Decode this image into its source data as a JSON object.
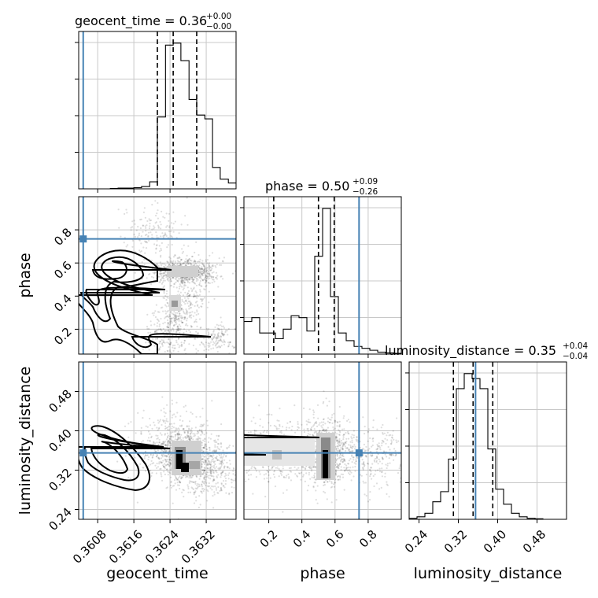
{
  "chart_data": {
    "type": "corner",
    "parameters": [
      "geocent_time",
      "phase",
      "luminosity_distance"
    ],
    "truths": {
      "geocent_time": 0.36048,
      "phase": 0.745,
      "luminosity_distance": 0.355
    },
    "axes": {
      "geocent_time": {
        "range": [
          0.36038,
          0.36386
        ],
        "ticks": [
          0.3608,
          0.3616,
          0.3624,
          0.3632
        ],
        "tick_labels": [
          "0.3608",
          "0.3616",
          "0.3624",
          "0.3632"
        ]
      },
      "phase": {
        "range": [
          0.05,
          1.0
        ],
        "ticks": [
          0.2,
          0.4,
          0.6,
          0.8
        ],
        "tick_labels": [
          "0.2",
          "0.4",
          "0.6",
          "0.8"
        ]
      },
      "luminosity_distance": {
        "range": [
          0.22,
          0.54
        ],
        "ticks": [
          0.24,
          0.32,
          0.4,
          0.48
        ],
        "tick_labels": [
          "0.24",
          "0.32",
          "0.40",
          "0.48"
        ]
      }
    },
    "titles": {
      "geocent_time": {
        "text": "geocent_time = 0.36",
        "plus": "+0.00",
        "minus": "−0.00"
      },
      "phase": {
        "text": "phase = 0.50",
        "plus": "+0.09",
        "minus": "−0.26"
      },
      "luminosity_distance": {
        "text": "luminosity_distance = 0.35",
        "plus": "+0.04",
        "minus": "−0.04"
      }
    },
    "histograms": {
      "geocent_time": {
        "edges": [
          0.36038,
          0.36055,
          0.36073,
          0.3609,
          0.36108,
          0.36125,
          0.36142,
          0.3616,
          0.36177,
          0.36195,
          0.36212,
          0.3623,
          0.36247,
          0.36264,
          0.36282,
          0.36299,
          0.36317,
          0.36334,
          0.36351,
          0.36369,
          0.36386
        ],
        "counts": [
          0,
          0,
          0,
          0,
          1,
          2,
          2,
          3,
          6,
          18,
          185,
          370,
          375,
          330,
          230,
          190,
          180,
          55,
          25,
          15
        ],
        "quantiles": [
          0.36212,
          0.36247,
          0.36299
        ]
      },
      "phase": {
        "edges": [
          0.05,
          0.0975,
          0.145,
          0.1925,
          0.24,
          0.2875,
          0.335,
          0.3825,
          0.43,
          0.4775,
          0.525,
          0.5725,
          0.62,
          0.6675,
          0.715,
          0.7625,
          0.81,
          0.8575,
          0.905,
          0.9525,
          1.0
        ],
        "counts": [
          85,
          95,
          55,
          55,
          40,
          65,
          100,
          95,
          60,
          255,
          380,
          150,
          55,
          35,
          20,
          15,
          10,
          5,
          3,
          2
        ],
        "quantiles": [
          0.23,
          0.5,
          0.595
        ]
      },
      "luminosity_distance": {
        "edges": [
          0.22,
          0.236,
          0.252,
          0.268,
          0.284,
          0.3,
          0.316,
          0.332,
          0.348,
          0.364,
          0.38,
          0.396,
          0.412,
          0.428,
          0.444,
          0.46,
          0.476,
          0.492,
          0.508,
          0.524,
          0.54
        ],
        "counts": [
          2,
          5,
          12,
          35,
          55,
          120,
          260,
          290,
          280,
          260,
          140,
          60,
          30,
          12,
          5,
          2,
          1,
          0,
          0,
          0
        ],
        "quantiles": [
          0.31,
          0.35,
          0.39
        ]
      }
    },
    "grid": true
  }
}
